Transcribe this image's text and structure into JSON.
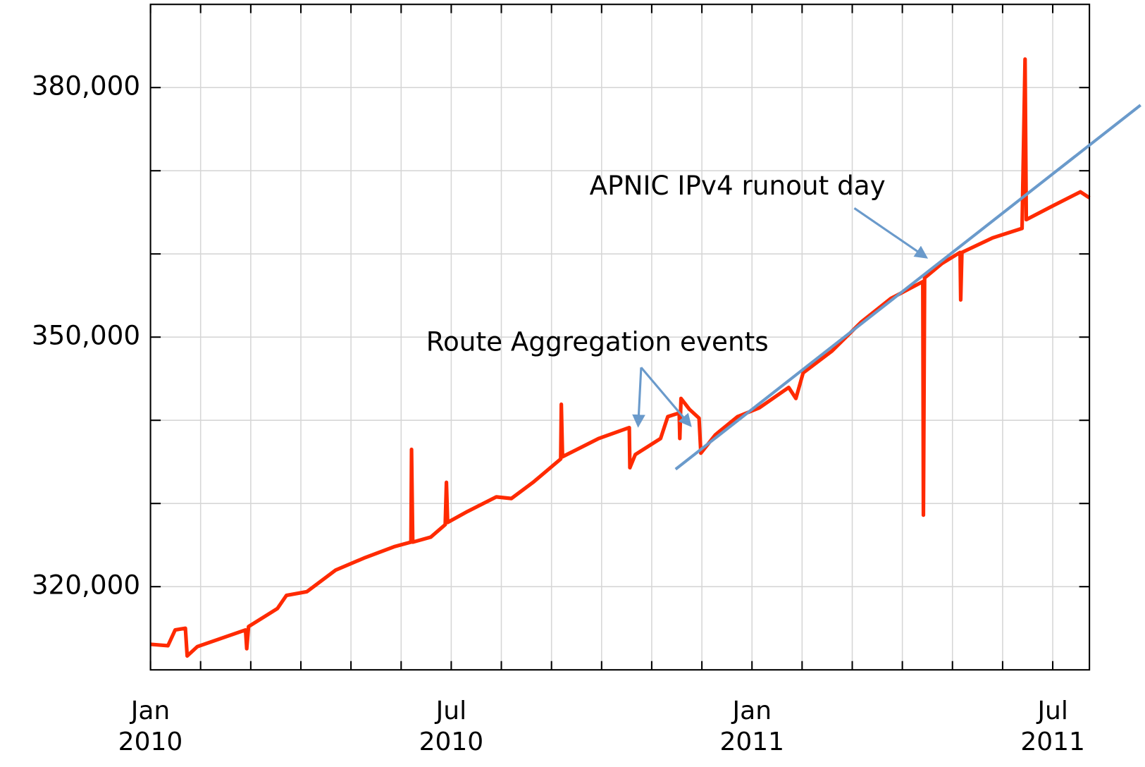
{
  "chart_data": {
    "type": "line",
    "x": [
      2010.0,
      2010.029,
      2010.041,
      2010.058,
      2010.061,
      2010.078,
      2010.114,
      2010.158,
      2010.16,
      2010.163,
      2010.211,
      2010.226,
      2010.26,
      2010.308,
      2010.357,
      2010.405,
      2010.433,
      2010.434,
      2010.436,
      2010.466,
      2010.49,
      2010.492,
      2010.494,
      2010.527,
      2010.575,
      2010.6,
      2010.636,
      2010.682,
      2010.683,
      2010.685,
      2010.709,
      2010.745,
      2010.796,
      2010.797,
      2010.806,
      2010.848,
      2010.86,
      2010.879,
      2010.88,
      2010.882,
      2010.896,
      2010.912,
      2010.915,
      2010.939,
      2010.976,
      2011.012,
      2011.061,
      2011.073,
      2011.085,
      2011.133,
      2011.182,
      2011.231,
      2011.284,
      2011.285,
      2011.287,
      2011.316,
      2011.346,
      2011.347,
      2011.349,
      2011.4,
      2011.449,
      2011.454,
      2011.456,
      2011.498,
      2011.546,
      2011.561
    ],
    "series": [
      {
        "color": "#ff2a00",
        "values": [
          313070,
          312900,
          314800,
          315000,
          311670,
          312800,
          313700,
          314800,
          312540,
          315200,
          317370,
          318950,
          319400,
          322000,
          323500,
          324800,
          325350,
          336500,
          325350,
          325960,
          327460,
          332540,
          327720,
          329040,
          330790,
          330600,
          332540,
          335350,
          341930,
          335620,
          336490,
          337810,
          339120,
          334300,
          335880,
          337810,
          340440,
          340880,
          337810,
          342630,
          341320,
          340260,
          336050,
          338250,
          340440,
          341490,
          343950,
          342630,
          345700,
          348330,
          351840,
          354650,
          356670,
          328600,
          357110,
          358860,
          360180,
          354470,
          360180,
          361930,
          363070,
          383420,
          364120,
          365700,
          367460,
          366750
        ]
      }
    ],
    "trend_line": {
      "color": "#6a9acb",
      "x": [
        2010.873,
        2011.646
      ],
      "values": [
        334120,
        377890
      ]
    },
    "xlim": [
      2010,
      2011.561
    ],
    "xticks": [
      {
        "value": 2010,
        "label": "Jan\n2010"
      },
      {
        "value": 2010.5,
        "label": "Jul\n2010"
      },
      {
        "value": 2011,
        "label": "Jan\n2011"
      },
      {
        "value": 2011.5,
        "label": "Jul\n2011"
      }
    ],
    "xminorticks": [
      2010.0833,
      2010.1667,
      2010.25,
      2010.3333,
      2010.4167,
      2010.5833,
      2010.6667,
      2010.75,
      2010.8333,
      2010.9167,
      2011.0833,
      2011.1667,
      2011.25,
      2011.3333,
      2011.4167
    ],
    "ylim": [
      310000,
      390000
    ],
    "yticks": [
      {
        "value": 320000,
        "label": "320,000"
      },
      {
        "value": 350000,
        "label": "350,000"
      },
      {
        "value": 380000,
        "label": "380,000"
      }
    ],
    "yminorticks": [
      330000,
      340000,
      360000,
      370000
    ],
    "grid": true,
    "annotations": [
      {
        "text": "Route Aggregation events"
      },
      {
        "text": "APNIC IPv4 runout day"
      }
    ]
  }
}
